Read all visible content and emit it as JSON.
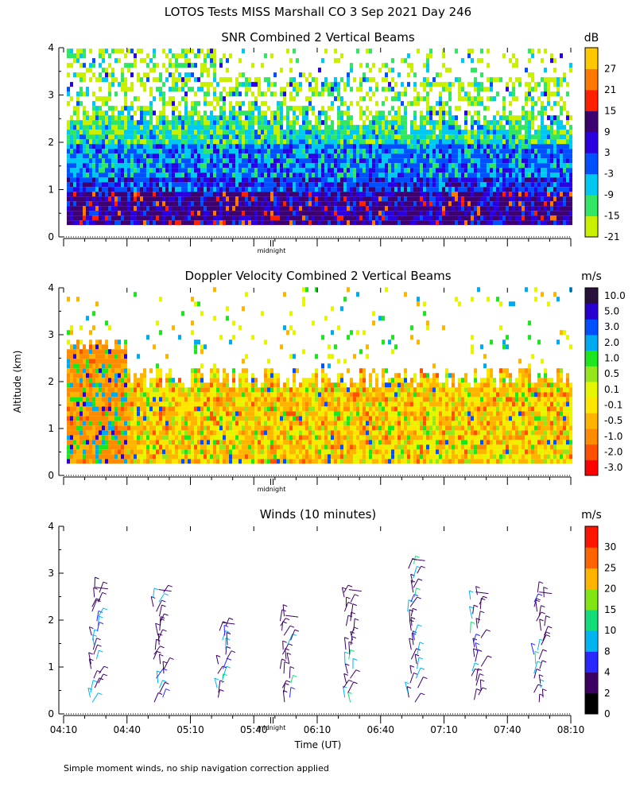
{
  "page": {
    "title": "LOTOS Tests MISS Marshall CO    3 Sep 2021 Day 246",
    "ylabel": "Altitude (km)",
    "xlabel": "Time (UT)",
    "footnote": "Simple moment winds, no ship navigation correction applied",
    "midnight_label": "midnight"
  },
  "chart_data": [
    {
      "type": "heatmap",
      "title": "SNR Combined 2 Vertical Beams",
      "ylim": [
        0,
        4
      ],
      "y_ticks": [
        "0",
        "1",
        "2",
        "3",
        "4"
      ],
      "x_range_utc": [
        "04:10",
        "08:10"
      ],
      "colorbar": {
        "unit": "dB",
        "labels": [
          "-21",
          "-15",
          "-9",
          "-3",
          "3",
          "9",
          "15",
          "21",
          "27"
        ],
        "colors": [
          "#c8f000",
          "#32e664",
          "#00c8f0",
          "#0050ff",
          "#2a00e0",
          "#3c0070",
          "#ff2000",
          "#ff7800",
          "#ffc800"
        ]
      },
      "description_layers": [
        {
          "from_km": 0.25,
          "to_km": 1.0,
          "dominant": "9"
        },
        {
          "from_km": 1.0,
          "to_km": 1.9,
          "dominant": "-3"
        },
        {
          "from_km": 1.9,
          "to_km": 2.5,
          "dominant": "-15"
        },
        {
          "from_km": 2.5,
          "to_km": 4.0,
          "dominant": "-21 (sparse)"
        }
      ]
    },
    {
      "type": "heatmap",
      "title": "Doppler Velocity Combined 2 Vertical Beams",
      "ylim": [
        0,
        4
      ],
      "y_ticks": [
        "0",
        "1",
        "2",
        "3",
        "4"
      ],
      "x_range_utc": [
        "04:10",
        "08:10"
      ],
      "colorbar": {
        "unit": "m/s",
        "labels": [
          "-3.0",
          "-2.0",
          "-1.0",
          "-0.5",
          "-0.1",
          "0.1",
          "0.5",
          "1.0",
          "2.0",
          "3.0",
          "5.0",
          "10.0"
        ],
        "colors": [
          "#ff0000",
          "#ff5000",
          "#ff8c00",
          "#ffb400",
          "#ffe600",
          "#e6f500",
          "#96e61e",
          "#1ee61e",
          "#00aaf0",
          "#0050ff",
          "#2800d2",
          "#280f3c"
        ]
      },
      "description_layers": [
        {
          "from_km": 0.25,
          "to_km": 1.9,
          "dominant": "-1.0 to 0.1"
        },
        {
          "from_km": 1.9,
          "to_km": 4.0,
          "dominant": "sparse"
        }
      ]
    },
    {
      "type": "scatter",
      "title": "Winds (10 minutes)",
      "ylim": [
        0,
        4
      ],
      "y_ticks": [
        "0",
        "1",
        "2",
        "3",
        "4"
      ],
      "x_ticks": [
        "04:10",
        "04:40",
        "05:10",
        "05:40",
        "06:10",
        "06:40",
        "07:10",
        "07:40",
        "08:10"
      ],
      "colorbar": {
        "unit": "m/s",
        "labels": [
          "0",
          "2",
          "4",
          "8",
          "10",
          "15",
          "20",
          "25",
          "30"
        ],
        "colors": [
          "#000000",
          "#3c0064",
          "#2828ff",
          "#00b4f0",
          "#14dc78",
          "#82e614",
          "#ffb400",
          "#ff6400",
          "#ff1400"
        ]
      },
      "profiles": [
        {
          "time": "04:25",
          "alt_min": 0.25,
          "alt_max": 2.7,
          "dominant_speed": "4"
        },
        {
          "time": "04:55",
          "alt_min": 0.25,
          "alt_max": 2.65,
          "dominant_speed": "4"
        },
        {
          "time": "05:25",
          "alt_min": 0.35,
          "alt_max": 1.95,
          "dominant_speed": "4"
        },
        {
          "time": "05:55",
          "alt_min": 0.25,
          "alt_max": 2.1,
          "dominant_speed": "4"
        },
        {
          "time": "06:25",
          "alt_min": 0.25,
          "alt_max": 2.65,
          "dominant_speed": "4"
        },
        {
          "time": "06:55",
          "alt_min": 0.25,
          "alt_max": 3.3,
          "dominant_speed": "4"
        },
        {
          "time": "07:25",
          "alt_min": 0.3,
          "alt_max": 2.6,
          "dominant_speed": "4"
        },
        {
          "time": "07:55",
          "alt_min": 0.25,
          "alt_max": 2.6,
          "dominant_speed": "4"
        }
      ]
    }
  ]
}
